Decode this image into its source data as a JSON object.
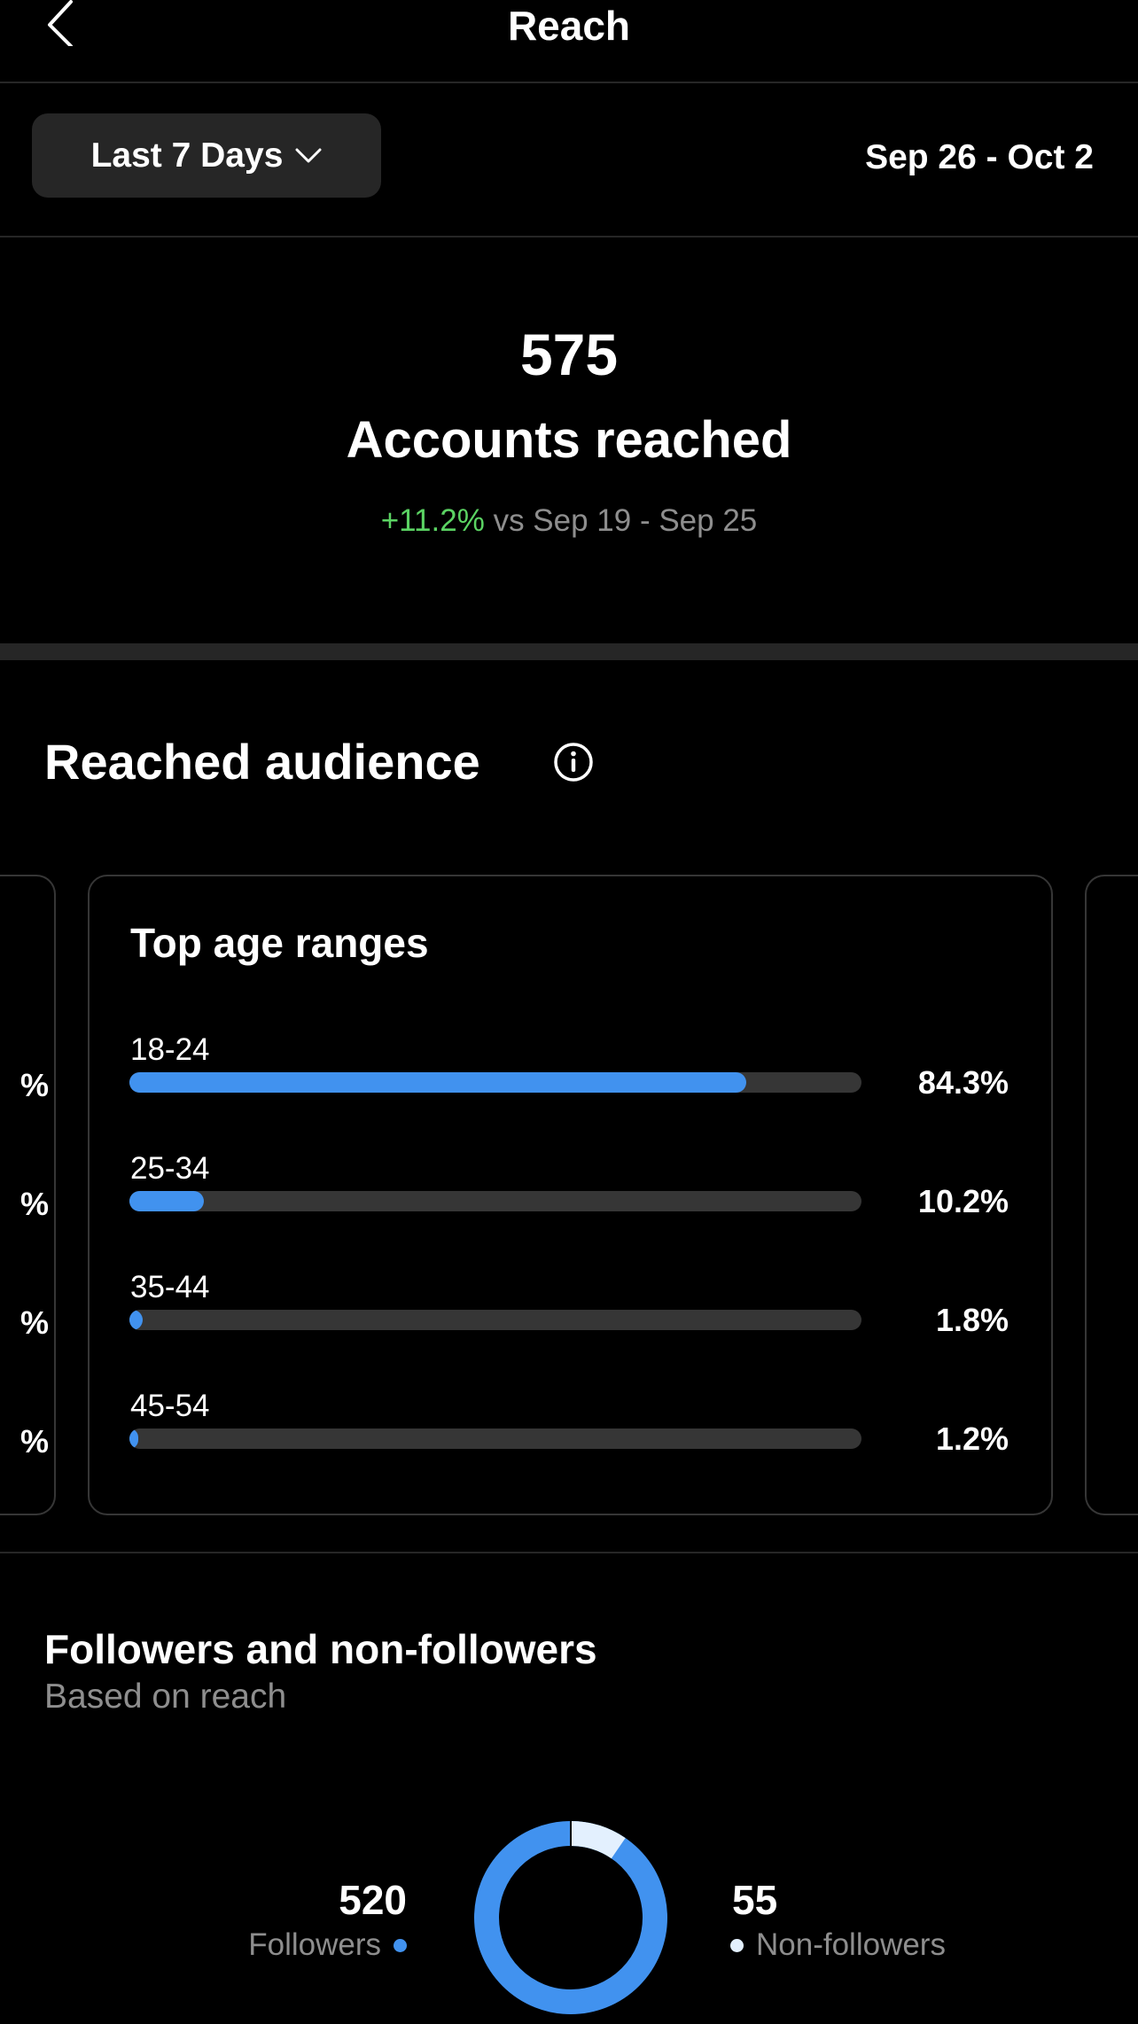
{
  "header": {
    "title": "Reach",
    "back_icon": "chevron-left-icon"
  },
  "filter": {
    "range_label": "Last 7 Days",
    "date_range": "Sep 26 - Oct 2"
  },
  "summary": {
    "total": "575",
    "label": "Accounts reached",
    "delta": "+11.2%",
    "compare": "vs Sep 19 - Sep 25"
  },
  "audience": {
    "title": "Reached audience",
    "left_card_peek": [
      "%",
      "%",
      "%",
      "%"
    ],
    "age_card": {
      "title": "Top age ranges",
      "rows": [
        {
          "label": "18-24",
          "value": "84.3%",
          "pct": 84.3
        },
        {
          "label": "25-34",
          "value": "10.2%",
          "pct": 10.2
        },
        {
          "label": "35-44",
          "value": "1.8%",
          "pct": 1.8
        },
        {
          "label": "45-54",
          "value": "1.2%",
          "pct": 1.2
        }
      ]
    }
  },
  "followers": {
    "title": "Followers and non-followers",
    "subtitle": "Based on reach",
    "followers_count": "520",
    "followers_label": "Followers",
    "non_followers_count": "55",
    "non_followers_label": "Non-followers",
    "followers_value": 520,
    "non_followers_value": 55
  },
  "colors": {
    "accent": "#4192ef",
    "secondary": "#e3f0fe",
    "positive": "#5bd363"
  }
}
